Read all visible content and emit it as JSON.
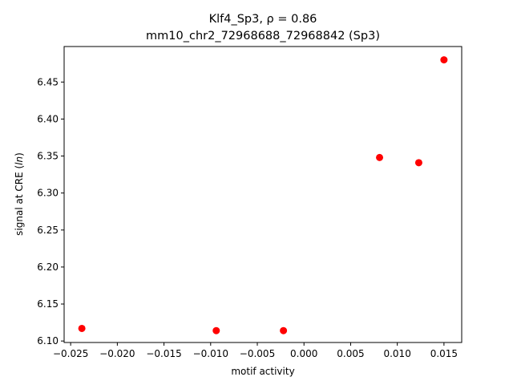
{
  "chart_data": {
    "type": "scatter",
    "title_line1": "Klf4_Sp3, ρ = 0.86",
    "title_line2": "mm10_chr2_72968688_72968842 (Sp3)",
    "xlabel": "motif activity",
    "ylabel": "signal at CRE (ln)",
    "xlim": [
      -0.0257,
      0.0169
    ],
    "ylim": [
      6.098,
      6.498
    ],
    "xticks": [
      -0.025,
      -0.02,
      -0.015,
      -0.01,
      -0.005,
      0.0,
      0.005,
      0.01,
      0.015
    ],
    "xtick_labels": [
      "−0.025",
      "−0.020",
      "−0.015",
      "−0.010",
      "−0.005",
      "0.000",
      "0.005",
      "0.010",
      "0.015"
    ],
    "yticks": [
      6.1,
      6.15,
      6.2,
      6.25,
      6.3,
      6.35,
      6.4,
      6.45
    ],
    "ytick_labels": [
      "6.10",
      "6.15",
      "6.20",
      "6.25",
      "6.30",
      "6.35",
      "6.40",
      "6.45"
    ],
    "grid": false,
    "marker_color": "#ff0000",
    "points": [
      {
        "x": -0.0238,
        "y": 6.117
      },
      {
        "x": -0.0094,
        "y": 6.114
      },
      {
        "x": -0.0022,
        "y": 6.114
      },
      {
        "x": 0.0081,
        "y": 6.348
      },
      {
        "x": 0.0123,
        "y": 6.341
      },
      {
        "x": 0.015,
        "y": 6.48
      }
    ]
  }
}
